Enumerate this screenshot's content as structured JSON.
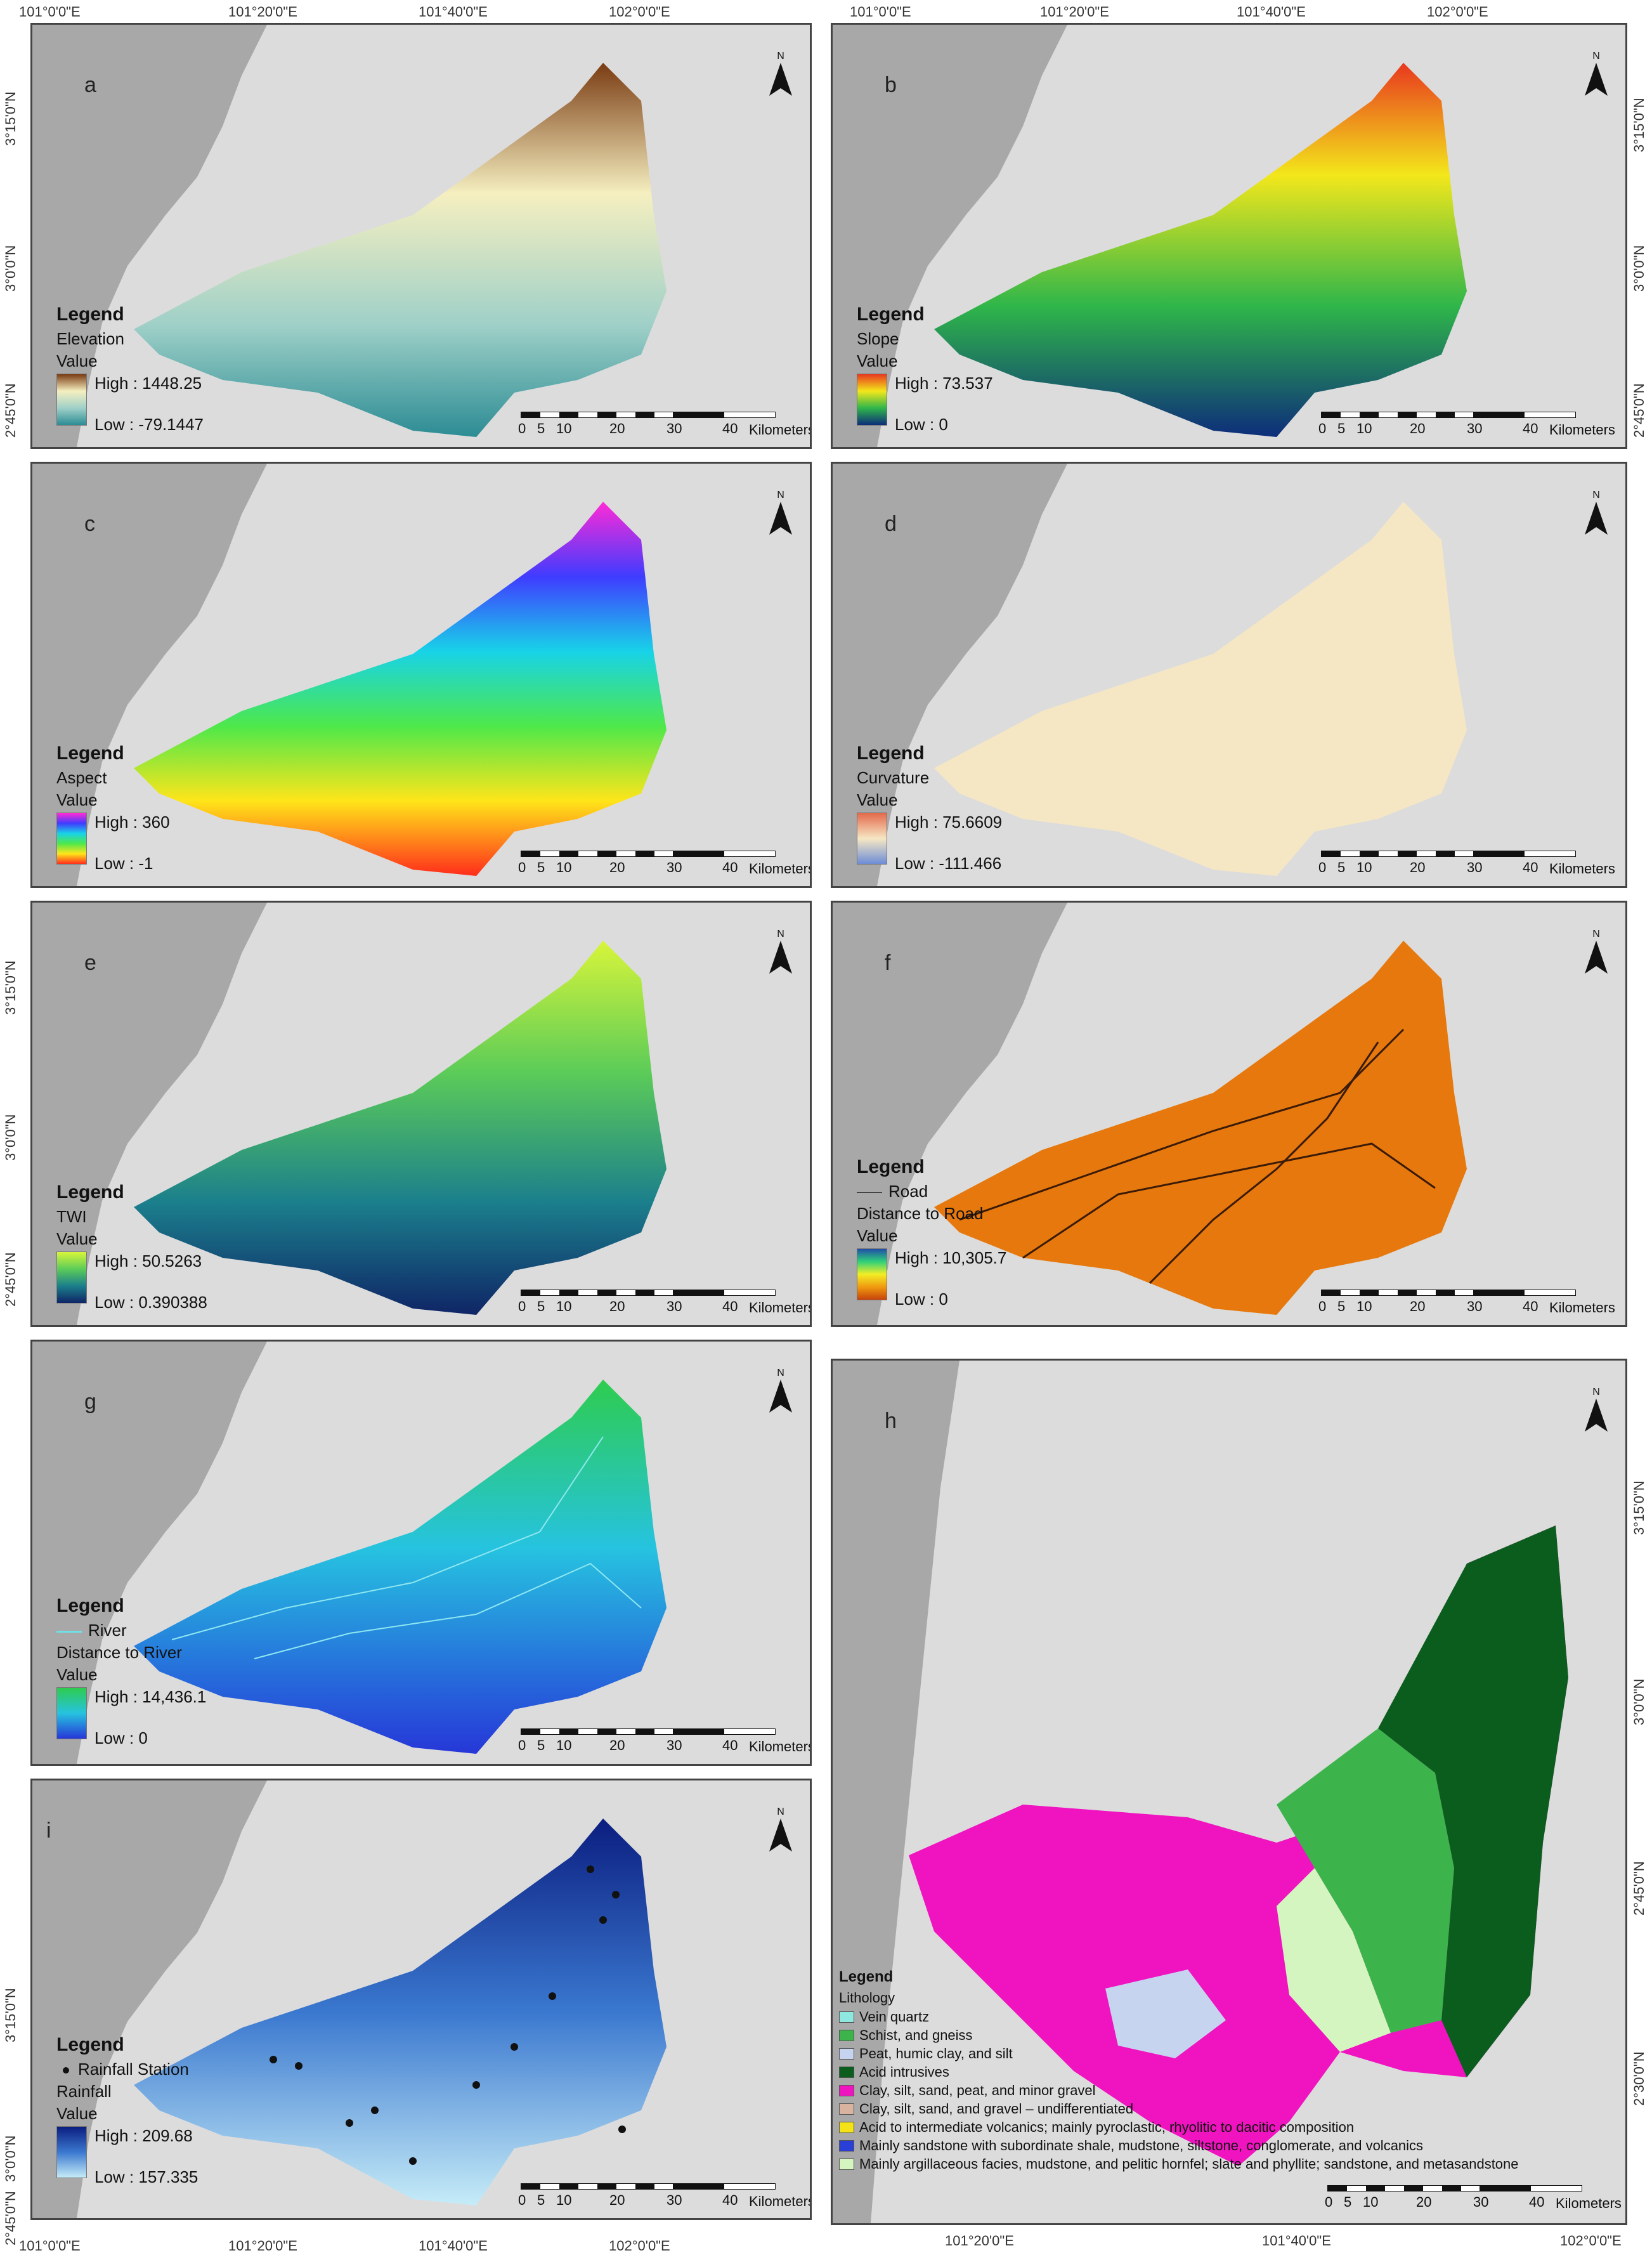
{
  "coords": {
    "top_lon": [
      "101°0'0\"E",
      "101°20'0\"E",
      "101°40'0\"E",
      "102°0'0\"E"
    ],
    "top_lon_right": [
      "101°0'0\"E",
      "101°20'0\"E",
      "101°40'0\"E",
      "102°0'0\"E"
    ],
    "left_lat": [
      "3°15'0\"N",
      "3°0'0\"N",
      "2°45'0\"N"
    ],
    "right_lat": [
      "3°15'0\"N",
      "3°0'0\"N",
      "2°45'0\"N"
    ],
    "right_lat_h": [
      "3°15'0\"N",
      "3°0'0\"N",
      "2°45'0\"N",
      "2°30'0\"N"
    ],
    "bottom_lon_left": [
      "101°0'0\"E",
      "101°20'0\"E",
      "101°40'0\"E",
      "102°0'0\"E"
    ],
    "left_lat_i": [
      "3°15'0\"N",
      "3°0'0\"N",
      "2°45'0\"N"
    ],
    "bottom_lon_right": [
      "101°20'0\"E",
      "101°40'0\"E",
      "102°0'0\"E"
    ]
  },
  "north_label": "N",
  "scale": {
    "ticks": [
      "0",
      "5",
      "10",
      "20",
      "30",
      "40"
    ],
    "unit": "Kilometers"
  },
  "legend_title": "Legend",
  "value_label": "Value",
  "panels": {
    "a": {
      "label": "a",
      "layer": "Elevation",
      "high": "High : 1448.25",
      "low": "Low : -79.1447"
    },
    "b": {
      "label": "b",
      "layer": "Slope",
      "high": "High : 73.537",
      "low": "Low : 0"
    },
    "c": {
      "label": "c",
      "layer": "Aspect",
      "high": "High : 360",
      "low": "Low : -1"
    },
    "d": {
      "label": "d",
      "layer": "Curvature",
      "high": "High : 75.6609",
      "low": "Low : -111.466"
    },
    "e": {
      "label": "e",
      "layer": "TWI",
      "high": "High : 50.5263",
      "low": "Low : 0.390388"
    },
    "f": {
      "label": "f",
      "line": "Road",
      "layer": "Distance to Road",
      "high": "High : 10,305.7",
      "low": "Low : 0"
    },
    "g": {
      "label": "g",
      "line": "River",
      "layer": "Distance to River",
      "high": "High : 14,436.1",
      "low": "Low : 0"
    },
    "h": {
      "label": "h",
      "layer": "Lithology",
      "classes": [
        {
          "name": "Vein quartz",
          "color": "#8fe8e0"
        },
        {
          "name": "Schist, and gneiss",
          "color": "#3cb44b"
        },
        {
          "name": "Peat, humic clay, and silt",
          "color": "#c6d4f0"
        },
        {
          "name": "Acid intrusives",
          "color": "#0b5d1e"
        },
        {
          "name": "Clay, silt, sand, peat, and minor gravel",
          "color": "#f013c0"
        },
        {
          "name": "Clay, silt, sand, and gravel – undifferentiated",
          "color": "#d8b4a0"
        },
        {
          "name": "Acid to intermediate volcanics; mainly pyroclastic, rhyolitic to dacitic composition",
          "color": "#f5e31a"
        },
        {
          "name": "Mainly sandstone with subordinate shale, mudstone, siltstone, conglomerate, and volcanics",
          "color": "#2a3fd6"
        },
        {
          "name": "Mainly argillaceous facies, mudstone, and pelitic hornfel; slate and phyllite; sandstone, and metasandstone",
          "color": "#d4f5c0"
        }
      ]
    },
    "i": {
      "label": "i",
      "point": "Rainfall Station",
      "layer": "Rainfall",
      "high": "High : 209.68",
      "low": "Low : 157.335"
    }
  },
  "colors": {
    "land": "#dcdcdc",
    "sea": "#9e9e9e",
    "border": "#444444"
  }
}
